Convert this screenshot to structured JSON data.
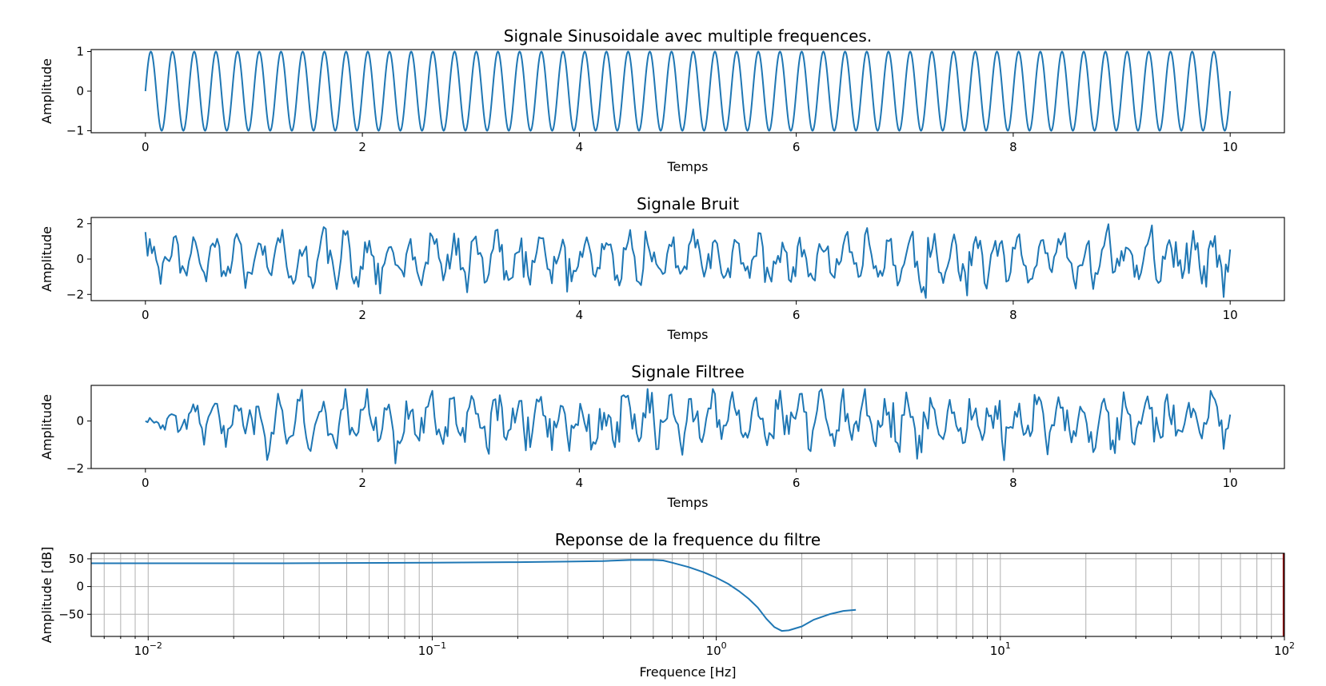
{
  "chart_data": [
    {
      "type": "line",
      "title": "Signale Sinusoidale avec multiple frequences.",
      "xlabel": "Temps",
      "ylabel": "Amplitude",
      "xlim": [
        -0.5,
        10.5
      ],
      "ylim": [
        -1.05,
        1.05
      ],
      "xticks": [
        0,
        2,
        4,
        6,
        8,
        10
      ],
      "xtick_labels": [
        "0",
        "2",
        "4",
        "6",
        "8",
        "10"
      ],
      "yticks": [
        -1,
        0,
        1
      ],
      "ytick_labels": [
        "−1",
        "0",
        "1"
      ],
      "grid": false,
      "series": [
        {
          "color": "#1f77b4",
          "signal": "sine",
          "frequency": 5,
          "amplitude": 1,
          "t_start": 0,
          "t_end": 10
        }
      ]
    },
    {
      "type": "line",
      "title": "Signale Bruit",
      "xlabel": "Temps",
      "ylabel": "Amplitude",
      "xlim": [
        -0.5,
        10.5
      ],
      "ylim": [
        -2.35,
        2.35
      ],
      "xticks": [
        0,
        2,
        4,
        6,
        8,
        10
      ],
      "xtick_labels": [
        "0",
        "2",
        "4",
        "6",
        "8",
        "10"
      ],
      "yticks": [
        -2,
        0,
        2
      ],
      "ytick_labels": [
        "−2",
        "0",
        "2"
      ],
      "grid": false,
      "series": [
        {
          "color": "#1f77b4",
          "signal": "sine plus noise",
          "frequency": 5,
          "amplitude": 1,
          "noise_level": 0.55,
          "t_start": 0,
          "t_end": 10,
          "y_min": -2.2,
          "y_max": 2.1
        }
      ]
    },
    {
      "type": "line",
      "title": "Signale Filtree",
      "xlabel": "Temps",
      "ylabel": "Amplitude",
      "xlim": [
        -0.5,
        10.5
      ],
      "ylim": [
        -2.0,
        1.5
      ],
      "xticks": [
        0,
        2,
        4,
        6,
        8,
        10
      ],
      "xtick_labels": [
        "0",
        "2",
        "4",
        "6",
        "8",
        "10"
      ],
      "yticks": [
        -2,
        0
      ],
      "ytick_labels": [
        "−2",
        "0"
      ],
      "grid": false,
      "series": [
        {
          "color": "#1f77b4",
          "signal": "filtered noisy sine",
          "t_start": 0,
          "t_end": 10,
          "y_min": -1.85,
          "y_max": 1.35
        }
      ]
    },
    {
      "type": "line",
      "title": "Reponse de la frequence du filtre",
      "xlabel": "Frequence [Hz]",
      "ylabel": "Amplitude [dB]",
      "xscale": "log",
      "xlim": [
        0.0063,
        100
      ],
      "ylim": [
        -90,
        60
      ],
      "xticks": [
        0.01,
        0.1,
        1,
        10,
        100
      ],
      "xtick_labels": [
        {
          "base": "10",
          "exp": "−2"
        },
        {
          "base": "10",
          "exp": "−1"
        },
        {
          "base": "10",
          "exp": "0"
        },
        {
          "base": "10",
          "exp": "1"
        },
        {
          "base": "10",
          "exp": "2"
        }
      ],
      "yticks": [
        -50,
        0,
        50
      ],
      "ytick_labels": [
        "−50",
        "0",
        "50"
      ],
      "grid": true,
      "cutoff_line": {
        "x": 100,
        "color": "#8b0000"
      },
      "series": [
        {
          "color": "#1f77b4",
          "x": [
            0.0063,
            0.01,
            0.03,
            0.1,
            0.2,
            0.3,
            0.4,
            0.5,
            0.6,
            0.65,
            0.7,
            0.8,
            0.9,
            1.0,
            1.1,
            1.2,
            1.3,
            1.4,
            1.5,
            1.6,
            1.7,
            1.8,
            2.0,
            2.2,
            2.5,
            2.8,
            3.1
          ],
          "y": [
            42,
            42,
            42,
            43,
            44,
            45,
            46,
            48,
            48,
            47,
            43,
            35,
            26,
            16,
            5,
            -8,
            -22,
            -38,
            -58,
            -73,
            -80,
            -79,
            -72,
            -60,
            -50,
            -44,
            -42
          ]
        }
      ]
    }
  ]
}
